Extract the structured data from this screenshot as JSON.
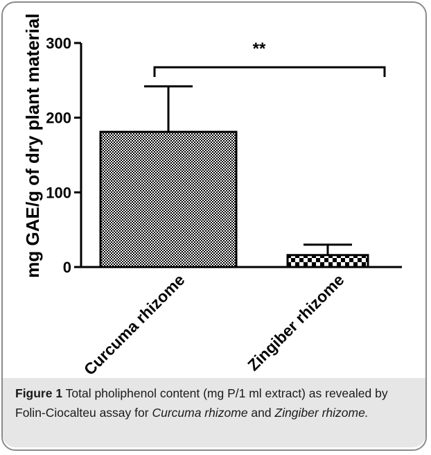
{
  "chart_data": {
    "type": "bar",
    "categories": [
      "Curcuma rhizome",
      "Zingiber rhizome"
    ],
    "values": [
      181,
      16
    ],
    "error_upper": [
      242,
      30
    ],
    "ylabel": "mg GAE/g of dry plant material",
    "xlabel": "",
    "ylim": [
      0,
      300
    ],
    "yticks": [
      0,
      100,
      200,
      300
    ],
    "grid": false,
    "significance": {
      "label": "**",
      "between": [
        "Curcuma rhizome",
        "Zingiber rhizome"
      ]
    }
  },
  "caption": {
    "figure_label": "Figure 1",
    "text_1": " Total pholiphenol content (mg P/1 ml extract) as revealed by Folin-Ciocalteu assay for ",
    "italic_1": "Curcuma rhizome",
    "text_2": " and ",
    "italic_2": "Zingiber rhizome."
  },
  "colors": {
    "bar_pattern_dark": "#000000",
    "bar_pattern_light": "#ffffff",
    "caption_bg": "#e6e6e6",
    "frame_border": "#8a8a8a"
  }
}
